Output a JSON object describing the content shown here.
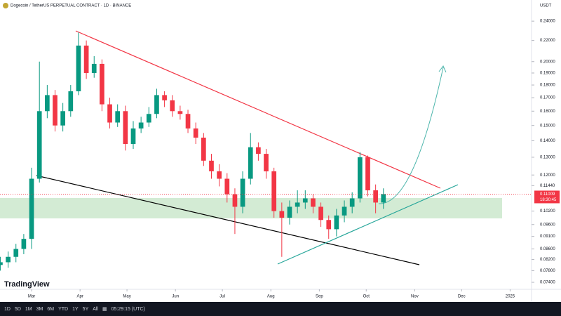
{
  "header": {
    "title": "Dogecoin / TetherUS PERPETUAL CONTRACT · 1D · BINANCE",
    "currency": "USDT"
  },
  "logo": "TradingView",
  "toolbar": {
    "ranges": [
      "1D",
      "5D",
      "1M",
      "3M",
      "6M",
      "YTD",
      "1Y",
      "5Y",
      "All"
    ],
    "time": "05:29:15 (UTC)"
  },
  "chart_data": {
    "type": "candlestick",
    "log_scale": true,
    "grid": false,
    "up_color": "#089981",
    "down_color": "#f23645",
    "x": [
      -20,
      -15,
      -10,
      -5,
      0,
      5,
      10,
      15,
      20,
      25,
      30,
      35,
      40,
      45,
      50,
      55,
      60,
      65,
      70,
      75,
      80,
      85,
      90,
      95,
      100,
      105,
      110,
      115,
      120,
      125,
      130,
      135,
      140,
      145,
      150,
      155,
      160,
      165,
      170,
      175,
      180,
      185,
      190,
      195,
      200,
      205,
      210,
      215,
      220,
      225
    ],
    "open": [
      0.08,
      0.081,
      0.083,
      0.086,
      0.09,
      0.118,
      0.16,
      0.172,
      0.15,
      0.16,
      0.175,
      0.215,
      0.19,
      0.198,
      0.165,
      0.152,
      0.16,
      0.138,
      0.148,
      0.152,
      0.158,
      0.172,
      0.168,
      0.16,
      0.158,
      0.148,
      0.142,
      0.128,
      0.122,
      0.118,
      0.11,
      0.104,
      0.118,
      0.136,
      0.132,
      0.122,
      0.102,
      0.099,
      0.104,
      0.106,
      0.108,
      0.104,
      0.098,
      0.094,
      0.1,
      0.104,
      0.108,
      0.13,
      0.112,
      0.106
    ],
    "high": [
      0.083,
      0.085,
      0.088,
      0.092,
      0.124,
      0.2,
      0.18,
      0.176,
      0.166,
      0.18,
      0.228,
      0.22,
      0.205,
      0.202,
      0.17,
      0.165,
      0.164,
      0.153,
      0.156,
      0.163,
      0.177,
      0.175,
      0.172,
      0.164,
      0.161,
      0.152,
      0.145,
      0.132,
      0.126,
      0.121,
      0.113,
      0.122,
      0.145,
      0.139,
      0.135,
      0.124,
      0.106,
      0.107,
      0.112,
      0.112,
      0.11,
      0.106,
      0.1,
      0.103,
      0.107,
      0.111,
      0.133,
      0.131,
      0.115,
      0.113
    ],
    "low": [
      0.078,
      0.079,
      0.081,
      0.084,
      0.086,
      0.116,
      0.155,
      0.146,
      0.146,
      0.156,
      0.172,
      0.185,
      0.186,
      0.16,
      0.148,
      0.149,
      0.134,
      0.135,
      0.145,
      0.149,
      0.155,
      0.163,
      0.156,
      0.154,
      0.145,
      0.138,
      0.125,
      0.118,
      0.114,
      0.106,
      0.092,
      0.101,
      0.115,
      0.128,
      0.118,
      0.099,
      0.083,
      0.096,
      0.101,
      0.103,
      0.101,
      0.095,
      0.09,
      0.091,
      0.097,
      0.101,
      0.106,
      0.109,
      0.101,
      0.103
    ],
    "close": [
      0.081,
      0.083,
      0.086,
      0.09,
      0.118,
      0.16,
      0.172,
      0.15,
      0.16,
      0.175,
      0.215,
      0.19,
      0.198,
      0.165,
      0.152,
      0.16,
      0.138,
      0.148,
      0.152,
      0.158,
      0.172,
      0.168,
      0.16,
      0.158,
      0.148,
      0.142,
      0.128,
      0.122,
      0.118,
      0.11,
      0.104,
      0.118,
      0.136,
      0.132,
      0.122,
      0.102,
      0.099,
      0.104,
      0.106,
      0.108,
      0.104,
      0.098,
      0.094,
      0.1,
      0.104,
      0.108,
      0.13,
      0.112,
      0.106,
      0.1101
    ],
    "last_price": 0.11009,
    "countdown": "18:30:45",
    "xlim": [
      -20.2,
      309.4
    ],
    "xticks": [
      {
        "value": 0,
        "label": "Mar"
      },
      {
        "value": 31,
        "label": "Apr"
      },
      {
        "value": 61,
        "label": "May"
      },
      {
        "value": 92,
        "label": "Jun"
      },
      {
        "value": 122,
        "label": "Jul"
      },
      {
        "value": 153,
        "label": "Aug"
      },
      {
        "value": 184,
        "label": "Sep"
      },
      {
        "value": 214,
        "label": "Oct"
      },
      {
        "value": 245,
        "label": "Nov"
      },
      {
        "value": 275,
        "label": "Dec"
      },
      {
        "value": 306,
        "label": "2025"
      }
    ],
    "ylim": [
      0.0717,
      0.264
    ],
    "yticks": [
      {
        "value": 0.24,
        "label": "0.24000"
      },
      {
        "value": 0.22,
        "label": "0.22000"
      },
      {
        "value": 0.2,
        "label": "0.20000"
      },
      {
        "value": 0.19,
        "label": "0.19000"
      },
      {
        "value": 0.18,
        "label": "0.18000"
      },
      {
        "value": 0.17,
        "label": "0.17000"
      },
      {
        "value": 0.16,
        "label": "0.16000"
      },
      {
        "value": 0.15,
        "label": "0.15000"
      },
      {
        "value": 0.14,
        "label": "0.14000"
      },
      {
        "value": 0.13,
        "label": "0.13000"
      },
      {
        "value": 0.12,
        "label": "0.12000"
      },
      {
        "value": 0.1144,
        "label": "0.11440"
      },
      {
        "value": 0.102,
        "label": "0.10200"
      },
      {
        "value": 0.096,
        "label": "0.09600"
      },
      {
        "value": 0.091,
        "label": "0.09100"
      },
      {
        "value": 0.086,
        "label": "0.08600"
      },
      {
        "value": 0.082,
        "label": "0.08200"
      },
      {
        "value": 0.078,
        "label": "0.07800"
      },
      {
        "value": 0.074,
        "label": "0.07400"
      }
    ]
  }
}
